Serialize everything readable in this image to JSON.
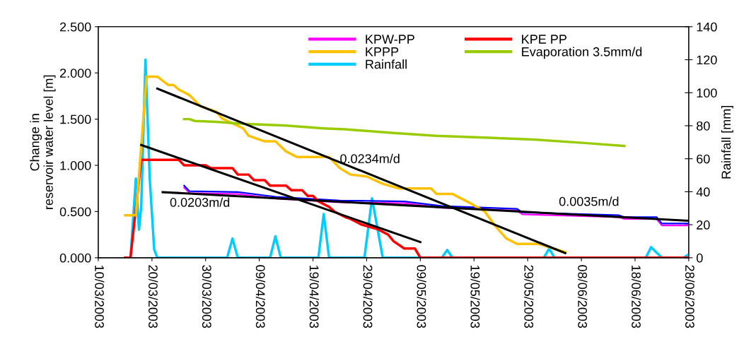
{
  "chart_data": {
    "type": "line",
    "ylabel": "Change in\nreservoir water level [m]",
    "y2label": "Rainfall [mm]",
    "xlim": [
      "2003-03-10",
      "2003-06-28"
    ],
    "xticks": [
      {
        "value": "2003-03-10",
        "label": "10/03/2003"
      },
      {
        "value": "2003-03-20",
        "label": "20/03/2003"
      },
      {
        "value": "2003-03-30",
        "label": "30/03/2003"
      },
      {
        "value": "2003-04-09",
        "label": "09/04/2003"
      },
      {
        "value": "2003-04-19",
        "label": "19/04/2003"
      },
      {
        "value": "2003-04-29",
        "label": "29/04/2003"
      },
      {
        "value": "2003-05-09",
        "label": "09/05/2003"
      },
      {
        "value": "2003-05-19",
        "label": "19/05/2003"
      },
      {
        "value": "2003-05-29",
        "label": "29/05/2003"
      },
      {
        "value": "2003-06-08",
        "label": "08/06/2003"
      },
      {
        "value": "2003-06-18",
        "label": "18/06/2003"
      },
      {
        "value": "2003-06-28",
        "label": "28/06/2003"
      }
    ],
    "ylim": [
      0,
      2.5
    ],
    "yticks": [
      {
        "value": 0,
        "label": "0.000"
      },
      {
        "value": 0.5,
        "label": "0.500"
      },
      {
        "value": 1,
        "label": "1.000"
      },
      {
        "value": 1.5,
        "label": "1.500"
      },
      {
        "value": 2,
        "label": "2.000"
      },
      {
        "value": 2.5,
        "label": "2.500"
      }
    ],
    "y2lim": [
      0,
      140
    ],
    "y2ticks": [
      0,
      20,
      40,
      60,
      80,
      100,
      120,
      140
    ],
    "grid": false,
    "legend": "top",
    "marker": "none",
    "line_style": "solid",
    "series": [
      {
        "name": "KPW-PP",
        "color": "#ff00ff",
        "x": [
          "2003-03-26",
          "2003-03-27",
          "2003-04-05",
          "2003-04-12",
          "2003-04-24",
          "2003-05-06",
          "2003-05-13",
          "2003-05-27",
          "2003-05-28",
          "2003-06-15",
          "2003-06-16",
          "2003-06-22",
          "2003-06-23",
          "2003-06-28"
        ],
        "values": [
          0.76,
          0.7,
          0.69,
          0.64,
          0.6,
          0.59,
          0.54,
          0.51,
          0.47,
          0.44,
          0.42,
          0.42,
          0.35,
          0.35
        ]
      },
      {
        "color": "#0000ff",
        "x": [
          "2003-03-26",
          "2003-03-27",
          "2003-04-05",
          "2003-04-12",
          "2003-04-24",
          "2003-05-06",
          "2003-05-13",
          "2003-05-27",
          "2003-05-28",
          "2003-06-15",
          "2003-06-16",
          "2003-06-22",
          "2003-06-23",
          "2003-06-28"
        ],
        "values": [
          0.78,
          0.72,
          0.71,
          0.66,
          0.62,
          0.61,
          0.56,
          0.53,
          0.49,
          0.46,
          0.44,
          0.44,
          0.37,
          0.37
        ]
      },
      {
        "name": "KPE PP",
        "color": "#ff0000",
        "x": [
          "2003-03-15",
          "2003-03-16",
          "2003-03-18",
          "2003-03-25",
          "2003-03-26",
          "2003-03-30",
          "2003-03-31",
          "2003-04-04",
          "2003-04-05",
          "2003-04-07",
          "2003-04-08",
          "2003-04-10",
          "2003-04-11",
          "2003-04-14",
          "2003-04-15",
          "2003-04-17",
          "2003-04-18",
          "2003-04-19",
          "2003-04-20",
          "2003-04-22",
          "2003-04-23",
          "2003-04-25",
          "2003-04-26",
          "2003-04-28",
          "2003-05-01",
          "2003-05-03",
          "2003-05-04",
          "2003-05-06",
          "2003-05-08",
          "2003-05-09",
          "2003-06-28"
        ],
        "values": [
          0,
          0,
          1.06,
          1.06,
          1.0,
          1.0,
          0.97,
          0.97,
          0.9,
          0.9,
          0.84,
          0.84,
          0.78,
          0.78,
          0.73,
          0.73,
          0.67,
          0.67,
          0.61,
          0.55,
          0.5,
          0.44,
          0.42,
          0.36,
          0.31,
          0.25,
          0.18,
          0.1,
          0.1,
          0,
          0
        ]
      },
      {
        "name": "KPPP",
        "color": "#ffc000",
        "x": [
          "2003-03-15",
          "2003-03-17",
          "2003-03-19",
          "2003-03-21",
          "2003-03-23",
          "2003-03-24",
          "2003-03-25",
          "2003-03-27",
          "2003-03-29",
          "2003-04-01",
          "2003-04-02",
          "2003-04-06",
          "2003-04-07",
          "2003-04-10",
          "2003-04-12",
          "2003-04-14",
          "2003-04-16",
          "2003-04-22",
          "2003-04-24",
          "2003-04-26",
          "2003-04-29",
          "2003-05-02",
          "2003-05-05",
          "2003-05-11",
          "2003-05-12",
          "2003-05-15",
          "2003-05-18",
          "2003-05-21",
          "2003-05-23",
          "2003-05-25",
          "2003-05-27",
          "2003-05-31",
          "2003-06-05"
        ],
        "values": [
          0.46,
          0.46,
          1.96,
          1.96,
          1.87,
          1.87,
          1.82,
          1.76,
          1.64,
          1.58,
          1.51,
          1.4,
          1.32,
          1.26,
          1.26,
          1.15,
          1.09,
          1.09,
          0.97,
          0.9,
          0.88,
          0.8,
          0.75,
          0.75,
          0.69,
          0.69,
          0.6,
          0.5,
          0.34,
          0.21,
          0.15,
          0.15,
          0.06
        ]
      },
      {
        "name": "Evaporation 3.5mm/d",
        "color": "#99cc00",
        "x": [
          "2003-03-26",
          "2003-03-27",
          "2003-03-28",
          "2003-04-01",
          "2003-04-06",
          "2003-04-10",
          "2003-04-14",
          "2003-04-21",
          "2003-04-25",
          "2003-05-04",
          "2003-05-12",
          "2003-05-21",
          "2003-05-30",
          "2003-06-09",
          "2003-06-16"
        ],
        "values": [
          1.5,
          1.5,
          1.48,
          1.47,
          1.45,
          1.44,
          1.43,
          1.4,
          1.39,
          1.35,
          1.32,
          1.3,
          1.28,
          1.24,
          1.21
        ]
      },
      {
        "name": "Rainfall",
        "color": "#00ccff",
        "axis": "y2",
        "x": [
          "2003-03-15",
          "2003-03-16",
          "2003-03-17",
          "2003-03-17T14:00",
          "2003-03-18",
          "2003-03-18T19:00",
          "2003-03-19T14:00",
          "2003-03-20T10:00",
          "2003-03-21",
          "2003-04-03",
          "2003-04-04",
          "2003-04-05",
          "2003-04-11",
          "2003-04-12",
          "2003-04-13",
          "2003-04-20",
          "2003-04-21",
          "2003-04-22",
          "2003-04-28T14:00",
          "2003-04-30",
          "2003-05-02",
          "2003-05-13",
          "2003-05-14",
          "2003-05-15",
          "2003-06-01",
          "2003-06-02",
          "2003-06-03",
          "2003-06-20",
          "2003-06-21",
          "2003-06-23",
          "2003-06-27",
          "2003-06-28"
        ],
        "values": [
          0,
          0,
          48,
          17,
          31,
          120,
          48,
          5,
          0,
          0,
          11.6,
          0,
          0,
          13,
          0,
          0,
          26.5,
          0,
          0,
          36,
          0,
          0,
          4.7,
          0,
          0,
          5.6,
          0,
          0,
          6.4,
          0,
          0,
          2
        ]
      },
      {
        "type": "line",
        "color": "#000000",
        "x": [
          "2003-03-21",
          "2003-06-05"
        ],
        "values": [
          1.83,
          0.05
        ]
      },
      {
        "type": "line",
        "color": "#000000",
        "x": [
          "2003-03-18",
          "2003-05-09"
        ],
        "values": [
          1.22,
          0.17
        ]
      },
      {
        "type": "line",
        "color": "#000000",
        "x": [
          "2003-03-22",
          "2003-06-28"
        ],
        "values": [
          0.71,
          0.4
        ]
      }
    ],
    "annotations": [
      {
        "text": "0.0234m/d",
        "x": "2003-04-24",
        "y": 1.06
      },
      "0.0203m/d",
      "0.0035m/d"
    ]
  }
}
